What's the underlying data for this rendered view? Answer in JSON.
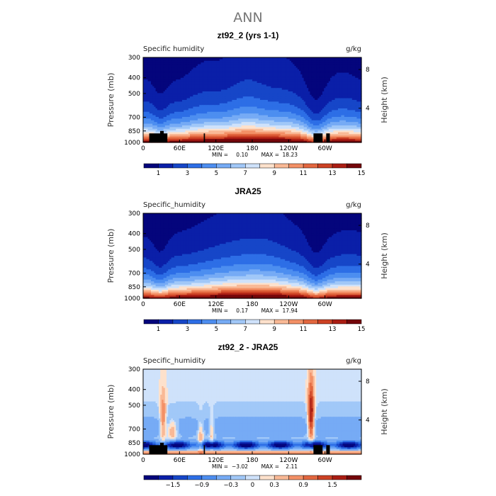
{
  "page_title": "ANN",
  "colors": {
    "humidity_scale": [
      "#04057c",
      "#0a1fa8",
      "#1646c8",
      "#2d6ee6",
      "#4d8ef0",
      "#76abf5",
      "#a1c8f8",
      "#cfe2fb",
      "#fde1cc",
      "#f9b996",
      "#f39066",
      "#e2673f",
      "#cc4124",
      "#aa1d13",
      "#74060a"
    ],
    "diff_scale": [
      "#04057c",
      "#0a1fa8",
      "#1646c8",
      "#2d6ee6",
      "#4d8ef0",
      "#76abf5",
      "#a1c8f8",
      "#cfe2fb",
      "#fde1cc",
      "#f9b996",
      "#f39066",
      "#e2673f",
      "#cc4124",
      "#aa1d13",
      "#74060a"
    ]
  },
  "chart_data": [
    {
      "type": "heatmap",
      "title": "zt92_2 (yrs 1-1)",
      "left_label": "Specific humidity",
      "units": "g/kg",
      "ylabel": "Pressure (mb)",
      "y2label": "Height (km)",
      "x_ticks": [
        "0",
        "60E",
        "120E",
        "180",
        "120W",
        "60W"
      ],
      "y_ticks": [
        "300",
        "400",
        "500",
        "700",
        "850",
        "1000"
      ],
      "y2_ticks": [
        "8",
        "4"
      ],
      "min_label": "MIN =",
      "min": "0.10",
      "max_label": "MAX =",
      "max": "18.23",
      "colorbar_labels": [
        "1",
        "3",
        "5",
        "7",
        "9",
        "11",
        "13",
        "15"
      ],
      "field": "humidity",
      "topography": true
    },
    {
      "type": "heatmap",
      "title": "JRA25",
      "left_label": "Specific_humidity",
      "units": "g/kg",
      "ylabel": "Pressure (mb)",
      "y2label": "Height (km)",
      "x_ticks": [
        "0",
        "60E",
        "120E",
        "180",
        "120W",
        "60W"
      ],
      "y_ticks": [
        "300",
        "400",
        "500",
        "700",
        "850",
        "1000"
      ],
      "y2_ticks": [
        "8",
        "4"
      ],
      "min_label": "MIN =",
      "min": "0.17",
      "max_label": "MAX =",
      "max": "17.94",
      "colorbar_labels": [
        "1",
        "3",
        "5",
        "7",
        "9",
        "11",
        "13",
        "15"
      ],
      "field": "humidity",
      "topography": false
    },
    {
      "type": "heatmap",
      "title": "zt92_2 - JRA25",
      "left_label": "Specific_humidity",
      "units": "g/kg",
      "ylabel": "Pressure (mb)",
      "y2label": "Height (km)",
      "x_ticks": [
        "0",
        "60E",
        "120E",
        "180",
        "120W",
        "60W"
      ],
      "y_ticks": [
        "300",
        "400",
        "500",
        "700",
        "850",
        "1000"
      ],
      "y2_ticks": [
        "8",
        "4"
      ],
      "min_label": "MIN =",
      "min": "−3.02",
      "max_label": "MAX =",
      "max": "2.11",
      "colorbar_labels": [
        "−1.5",
        "−0.9",
        "−0.3",
        "0",
        "0.3",
        "0.9",
        "1.5"
      ],
      "field": "difference",
      "topography": true
    }
  ]
}
